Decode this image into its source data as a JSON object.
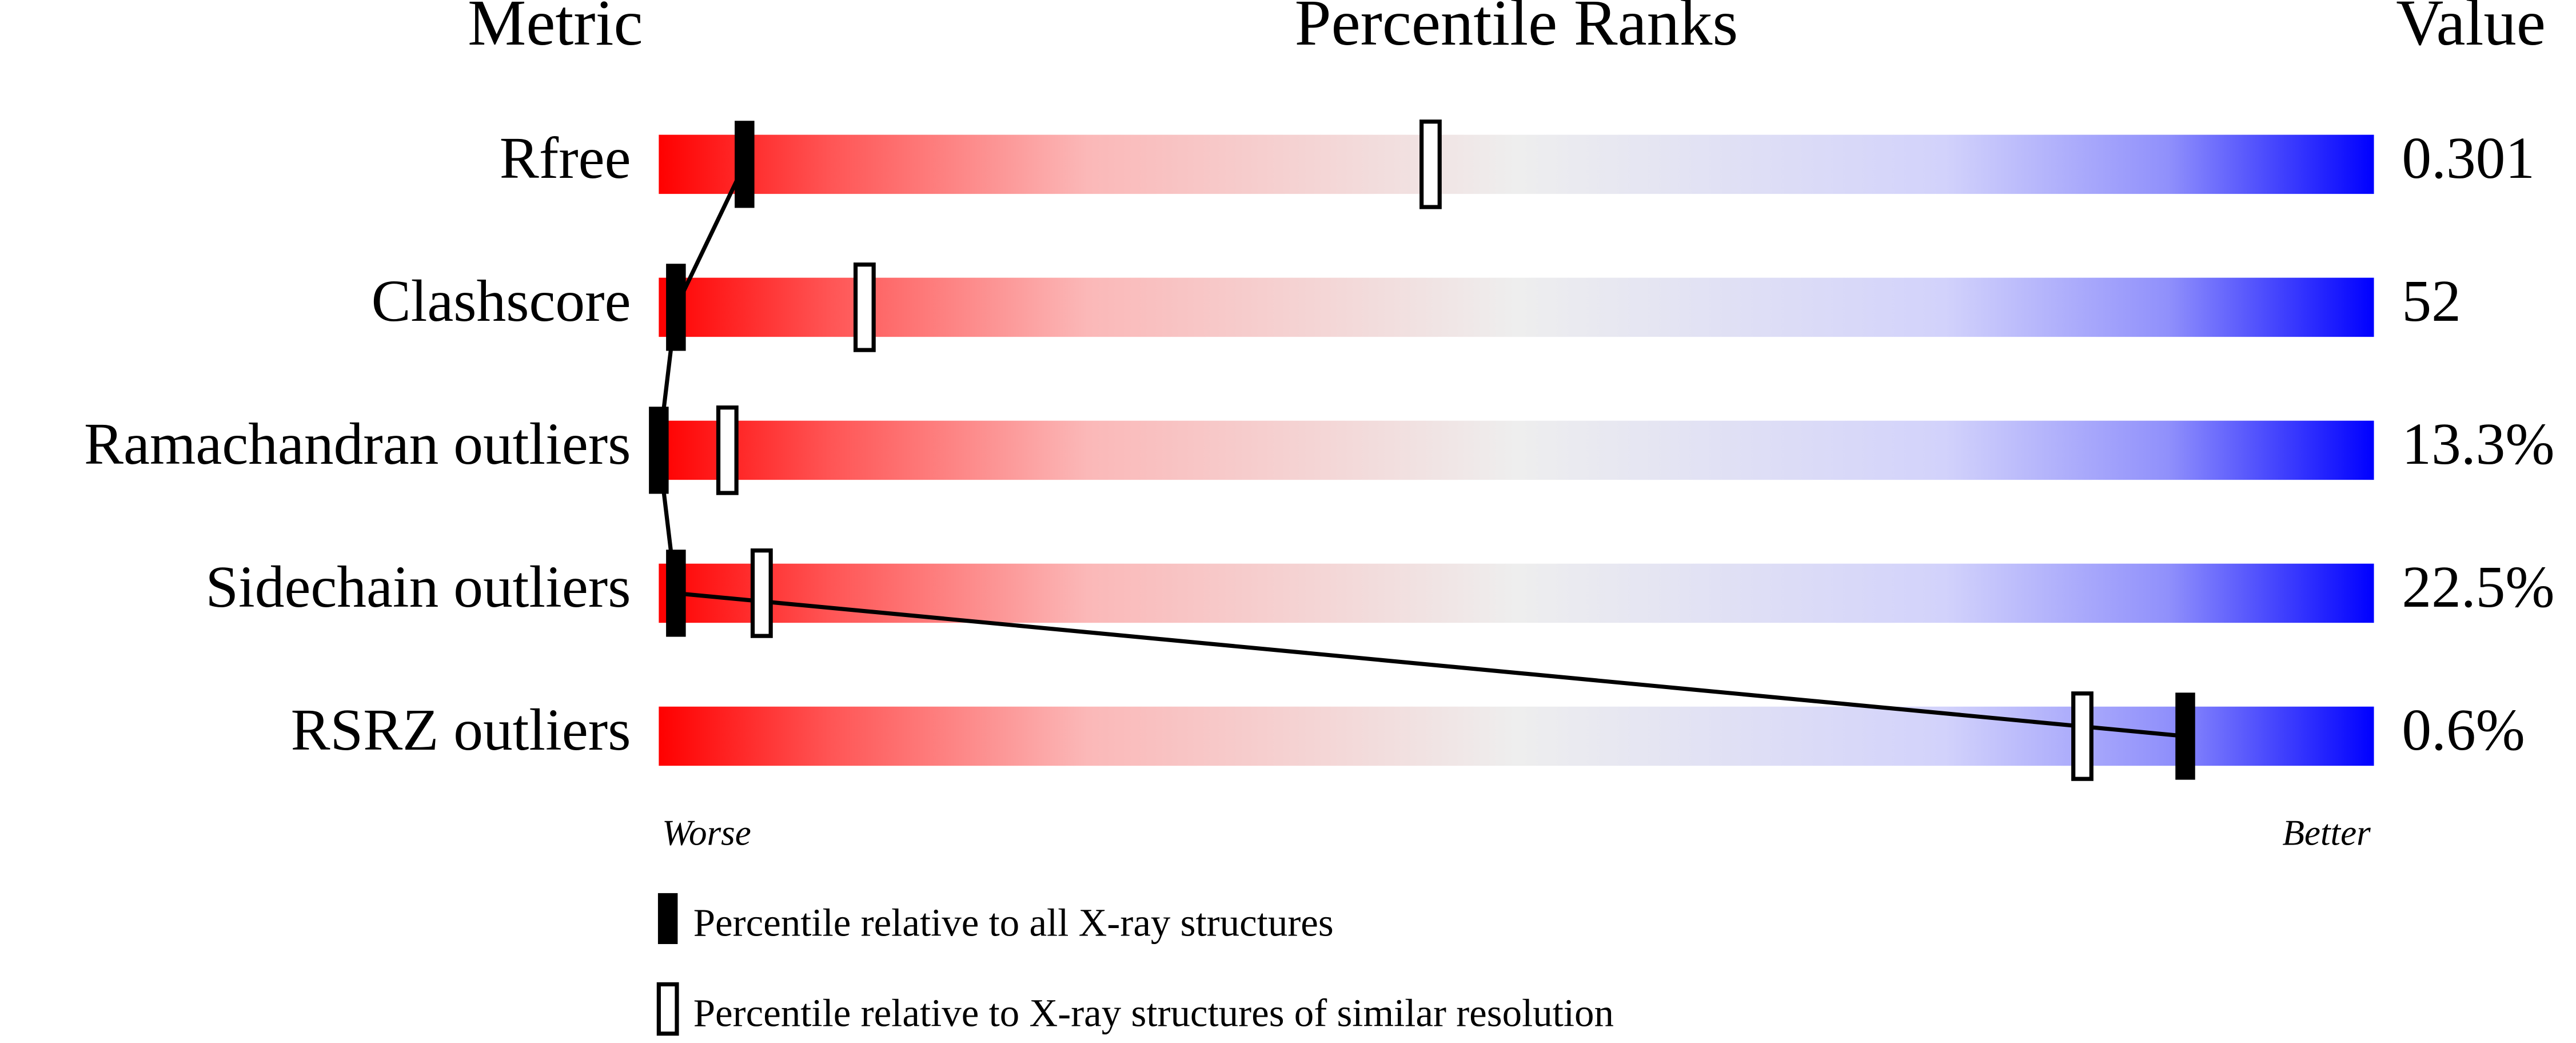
{
  "chart_data": {
    "type": "percentile-slider",
    "headers": [
      "Metric",
      "Percentile Ranks",
      "Value"
    ],
    "categories": [
      "Rfree",
      "Clashscore",
      "Ramachandran outliers",
      "Sidechain outliers",
      "RSRZ outliers"
    ],
    "metric_values": [
      "0.301",
      "52",
      "13.3%",
      "22.5%",
      "0.6%"
    ],
    "xlim": [
      0,
      100
    ],
    "x_end_labels": [
      "Worse",
      "Better"
    ],
    "series": [
      {
        "name": "Percentile relative to all X-ray structures",
        "color": "#000000",
        "values": [
          5,
          1,
          0,
          1,
          89
        ]
      },
      {
        "name": "Percentile relative to X-ray structures of similar resolution",
        "color": "#ffffff",
        "values": [
          45,
          12,
          4,
          6,
          83
        ]
      }
    ]
  }
}
